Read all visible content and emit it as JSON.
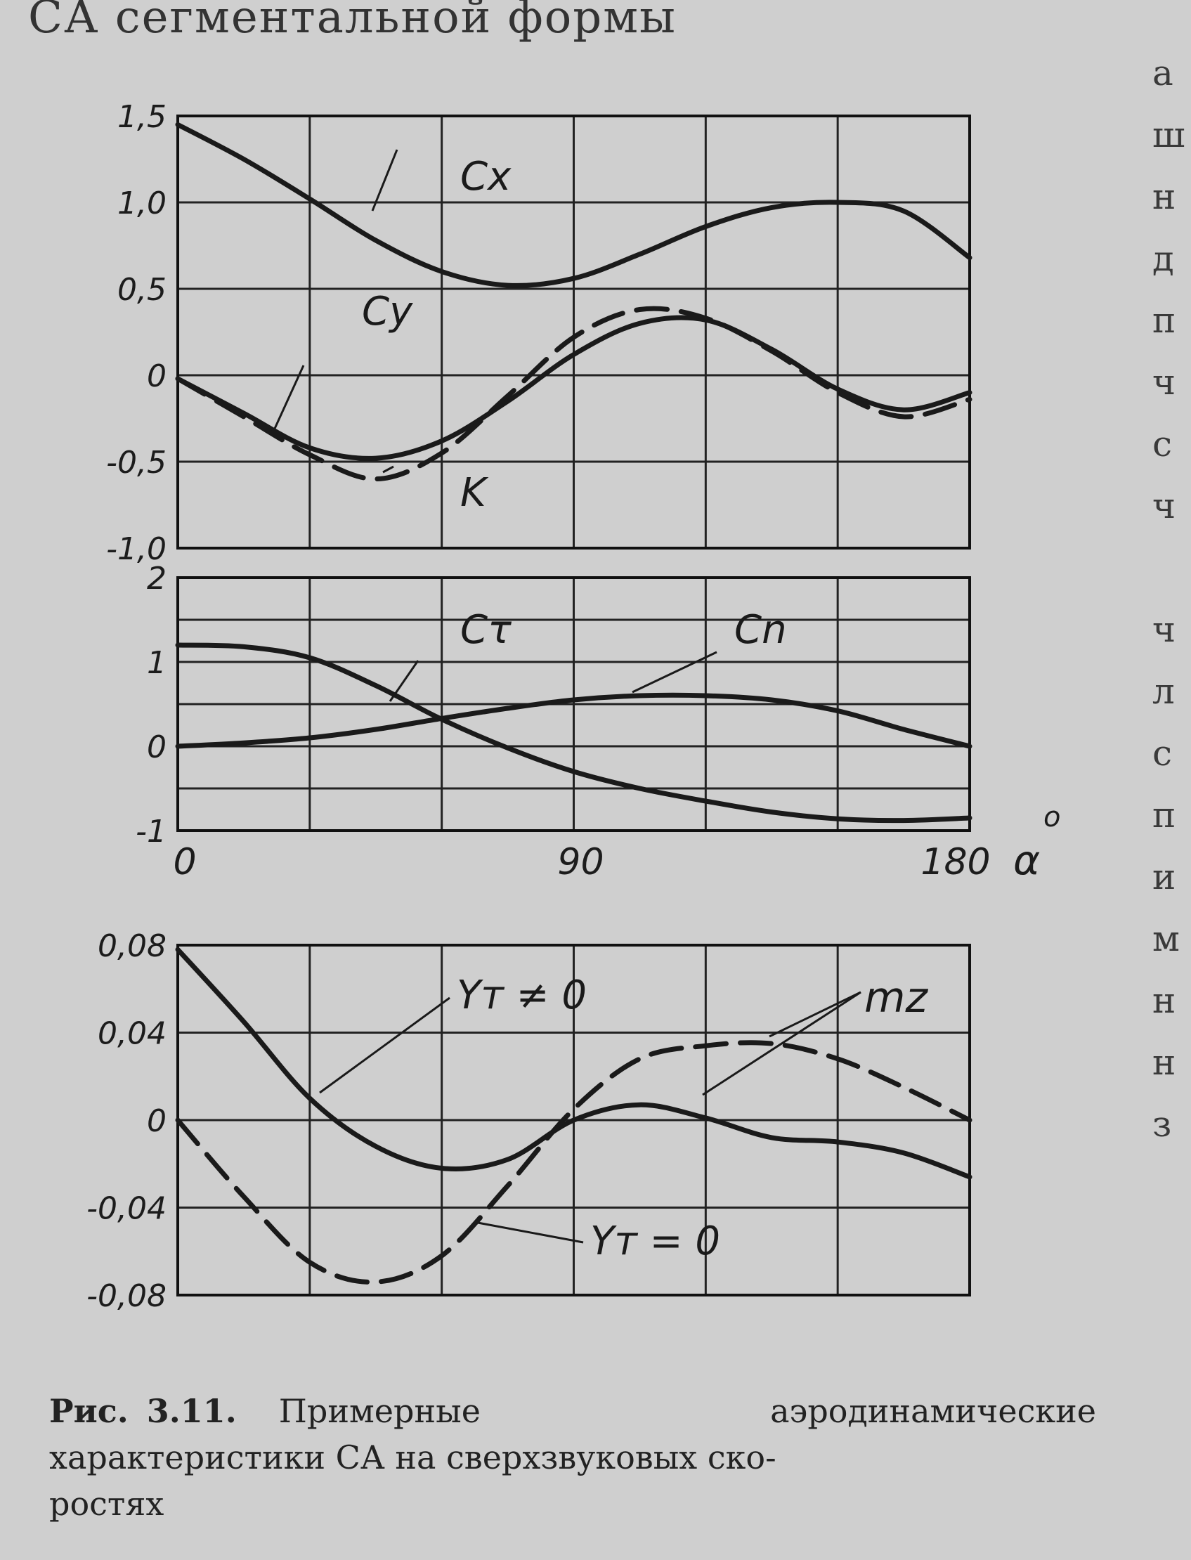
{
  "page_text": {
    "top_fragment": "СА сегментальной формы",
    "right_fragments": [
      "а",
      "ш",
      "н",
      "д",
      "п",
      "ч",
      "с",
      "ч",
      "",
      "ч",
      "л",
      "с",
      "п",
      "и",
      "м",
      "н",
      "н",
      "з"
    ]
  },
  "caption": {
    "label": "Рис.",
    "number": "3.11.",
    "text": "Примерные аэродинамические характеристики СА на сверхзвуковых ско-",
    "text_end": "ростях"
  },
  "chart_data": [
    {
      "type": "line",
      "panel": "top",
      "xlim": [
        0,
        180
      ],
      "ylim": [
        -1.0,
        1.5
      ],
      "yticks": [
        1.5,
        1.0,
        0.5,
        0,
        -0.5,
        -1.0
      ],
      "ytick_labels": [
        "1,5",
        "1,0",
        "0,5",
        "0",
        "-0,5",
        "-1,0"
      ],
      "grid": true,
      "series": [
        {
          "name": "Cx",
          "style": "solid",
          "x": [
            0,
            15,
            30,
            45,
            60,
            75,
            90,
            105,
            120,
            135,
            150,
            165,
            180
          ],
          "y": [
            1.45,
            1.25,
            1.02,
            0.78,
            0.6,
            0.52,
            0.56,
            0.7,
            0.86,
            0.97,
            1.0,
            0.95,
            0.68
          ]
        },
        {
          "name": "Cy",
          "style": "solid",
          "x": [
            0,
            15,
            30,
            45,
            60,
            75,
            90,
            105,
            120,
            135,
            150,
            165,
            180
          ],
          "y": [
            -0.02,
            -0.22,
            -0.42,
            -0.48,
            -0.38,
            -0.15,
            0.12,
            0.3,
            0.32,
            0.15,
            -0.08,
            -0.2,
            -0.1
          ]
        },
        {
          "name": "K",
          "style": "dashed",
          "x": [
            0,
            15,
            30,
            45,
            60,
            75,
            90,
            105,
            120,
            135,
            150,
            165,
            180
          ],
          "y": [
            -0.02,
            -0.24,
            -0.46,
            -0.6,
            -0.45,
            -0.12,
            0.22,
            0.38,
            0.33,
            0.14,
            -0.1,
            -0.24,
            -0.14
          ]
        }
      ]
    },
    {
      "type": "line",
      "panel": "middle",
      "xlim": [
        0,
        180
      ],
      "ylim": [
        -1,
        2
      ],
      "yticks": [
        2,
        1,
        0,
        -1
      ],
      "ytick_labels": [
        "2",
        "1",
        "0",
        "-1"
      ],
      "xticks": [
        0,
        90,
        180
      ],
      "xtick_labels": [
        "0",
        "90",
        "180"
      ],
      "xlabel": "α",
      "xlabel_unit": "o",
      "grid": true,
      "series": [
        {
          "name": "Cτ",
          "style": "solid",
          "x": [
            0,
            15,
            30,
            45,
            60,
            75,
            90,
            105,
            120,
            135,
            150,
            165,
            180
          ],
          "y": [
            1.2,
            1.18,
            1.05,
            0.72,
            0.32,
            -0.02,
            -0.3,
            -0.5,
            -0.65,
            -0.78,
            -0.86,
            -0.88,
            -0.85
          ]
        },
        {
          "name": "Cn",
          "style": "solid",
          "x": [
            0,
            15,
            30,
            45,
            60,
            75,
            90,
            105,
            120,
            135,
            150,
            165,
            180
          ],
          "y": [
            0.0,
            0.04,
            0.1,
            0.2,
            0.33,
            0.45,
            0.55,
            0.6,
            0.6,
            0.55,
            0.42,
            0.2,
            0.0
          ]
        }
      ]
    },
    {
      "type": "line",
      "panel": "bottom",
      "xlim": [
        0,
        180
      ],
      "ylim": [
        -0.08,
        0.08
      ],
      "yticks": [
        0.08,
        0.04,
        0,
        -0.04,
        -0.08
      ],
      "ytick_labels": [
        "0,08",
        "0,04",
        "0",
        "-0,04",
        "-0,08"
      ],
      "grid": true,
      "series_label": "mz",
      "series": [
        {
          "name": "Yт ≠ 0",
          "style": "solid",
          "x": [
            0,
            15,
            30,
            45,
            60,
            75,
            90,
            105,
            120,
            135,
            150,
            165,
            180
          ],
          "y": [
            0.078,
            0.045,
            0.01,
            -0.012,
            -0.022,
            -0.018,
            0.0,
            0.007,
            0.001,
            -0.008,
            -0.01,
            -0.015,
            -0.026
          ]
        },
        {
          "name": "Yт = 0",
          "style": "dashed",
          "x": [
            0,
            15,
            30,
            45,
            60,
            75,
            90,
            105,
            120,
            135,
            150,
            165,
            180
          ],
          "y": [
            0.0,
            -0.035,
            -0.065,
            -0.074,
            -0.062,
            -0.03,
            0.005,
            0.028,
            0.034,
            0.035,
            0.028,
            0.015,
            0.0
          ]
        }
      ]
    }
  ]
}
